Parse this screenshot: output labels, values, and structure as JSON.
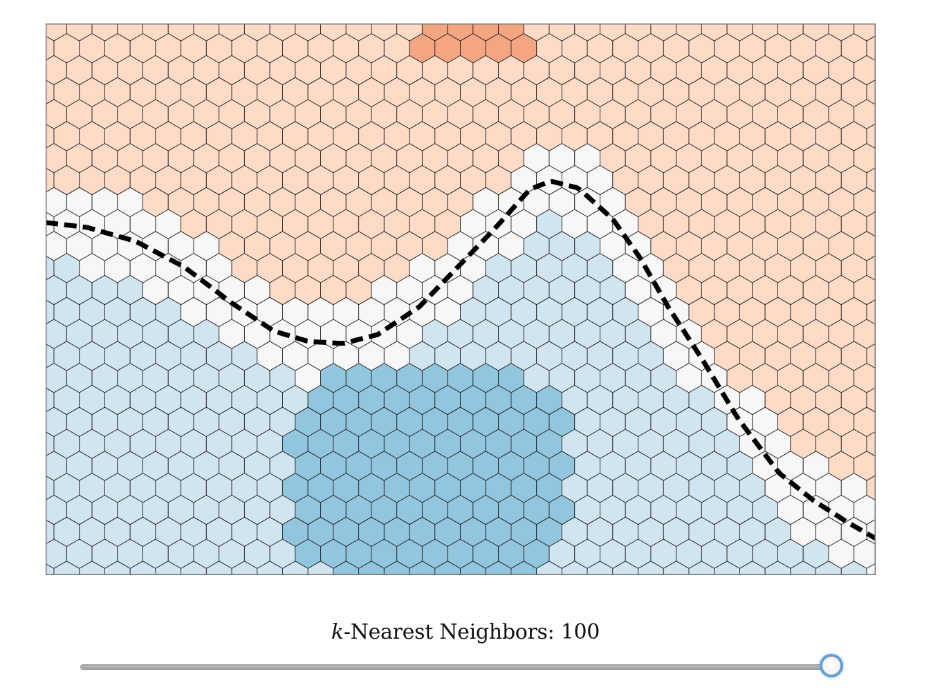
{
  "colors": {
    "page_background": "#ffffff",
    "plot_border": "#777777",
    "hex_stroke": "#222222",
    "decision_boundary": "#000000",
    "class_neutral": "#f7f7f7",
    "class_orange_light": "#fddbc7",
    "class_orange_dark": "#f4a582",
    "class_blue_light": "#d1e5f0",
    "class_blue_dark": "#92c5de",
    "slider_focus": "#5b9ee8"
  },
  "plot": {
    "description_kind": "hexbin classification map with dashed true decision boundary"
  },
  "slider": {
    "label_var": "k",
    "label_text": "-Nearest Neighbors: ",
    "value": "100",
    "value_fraction": 1.0
  }
}
